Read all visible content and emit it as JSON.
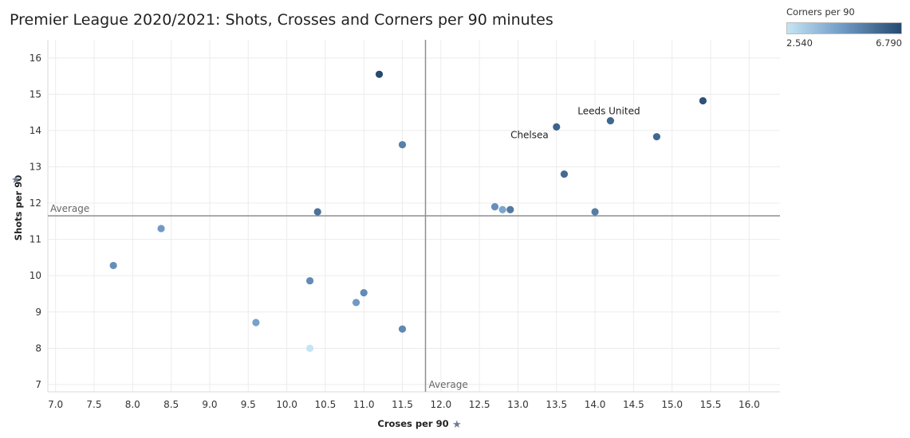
{
  "chart_data": {
    "type": "scatter",
    "title": "Premier League 2020/2021: Shots, Crosses and Corners per 90 minutes",
    "xlabel": "Croses per 90",
    "ylabel": "Shots per 90",
    "xlim": [
      6.9,
      16.4
    ],
    "ylim": [
      6.8,
      16.5
    ],
    "xticks": [
      "7.0",
      "7.5",
      "8.0",
      "8.5",
      "9.0",
      "9.5",
      "10.0",
      "10.5",
      "11.0",
      "11.5",
      "12.0",
      "12.5",
      "13.0",
      "13.5",
      "14.0",
      "14.5",
      "15.0",
      "15.5",
      "16.0"
    ],
    "yticks": [
      "7",
      "8",
      "9",
      "10",
      "11",
      "12",
      "13",
      "14",
      "15",
      "16"
    ],
    "grid": true,
    "color_legend": {
      "title": "Corners per 90",
      "min_label": "2.540",
      "max_label": "6.790",
      "min": 2.54,
      "max": 6.79,
      "color_low": "#c5e4f5",
      "color_high": "#274a70"
    },
    "reference_lines": {
      "x": {
        "value": 11.8,
        "label": "Average"
      },
      "y": {
        "value": 11.65,
        "label": "Average"
      }
    },
    "points": [
      {
        "x": 11.2,
        "y": 15.55,
        "c": 6.79
      },
      {
        "x": 15.4,
        "y": 14.82,
        "c": 6.6
      },
      {
        "x": 14.2,
        "y": 14.27,
        "c": 6.0,
        "label": "Leeds United"
      },
      {
        "x": 13.5,
        "y": 14.1,
        "c": 6.1,
        "label": "Chelsea"
      },
      {
        "x": 14.8,
        "y": 13.83,
        "c": 6.0
      },
      {
        "x": 11.5,
        "y": 13.61,
        "c": 5.3
      },
      {
        "x": 13.6,
        "y": 12.8,
        "c": 5.9
      },
      {
        "x": 12.7,
        "y": 11.9,
        "c": 4.9
      },
      {
        "x": 12.8,
        "y": 11.82,
        "c": 4.3
      },
      {
        "x": 12.9,
        "y": 11.82,
        "c": 5.5
      },
      {
        "x": 14.0,
        "y": 11.76,
        "c": 5.4
      },
      {
        "x": 10.4,
        "y": 11.76,
        "c": 5.7
      },
      {
        "x": 8.37,
        "y": 11.3,
        "c": 4.6
      },
      {
        "x": 7.75,
        "y": 10.28,
        "c": 4.9
      },
      {
        "x": 10.3,
        "y": 9.86,
        "c": 5.0
      },
      {
        "x": 11.0,
        "y": 9.53,
        "c": 5.0
      },
      {
        "x": 10.9,
        "y": 9.26,
        "c": 4.6
      },
      {
        "x": 9.6,
        "y": 8.71,
        "c": 4.4
      },
      {
        "x": 11.5,
        "y": 8.53,
        "c": 5.1
      },
      {
        "x": 10.3,
        "y": 8.0,
        "c": 2.54
      }
    ]
  }
}
